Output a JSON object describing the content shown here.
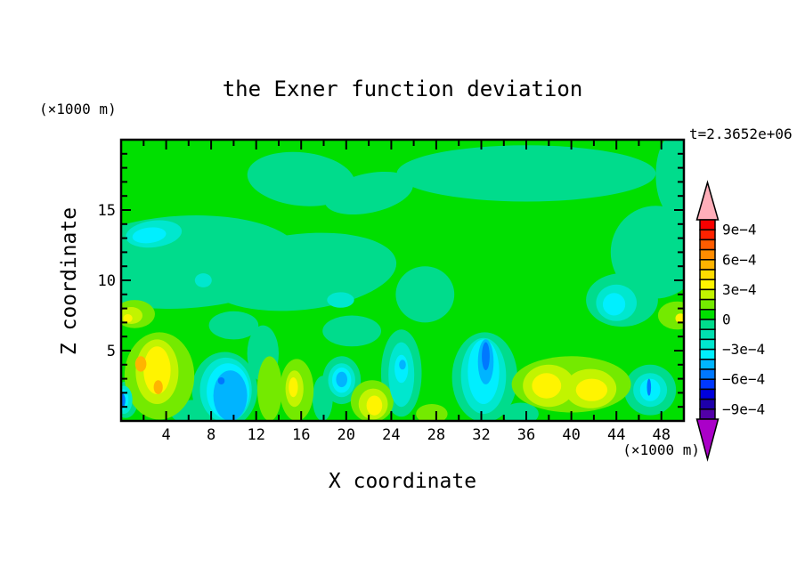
{
  "chart_data": {
    "type": "contour",
    "title": "the Exner function deviation",
    "timestamp": "t=2.3652e+06",
    "x_axis": {
      "label": "X coordinate",
      "unit": "(×1000 m)",
      "range": [
        0,
        50
      ],
      "major_ticks": [
        4,
        8,
        12,
        16,
        20,
        24,
        28,
        32,
        36,
        40,
        44,
        48
      ],
      "minor_ticks": [
        2,
        6,
        10,
        14,
        18,
        22,
        26,
        30,
        34,
        38,
        42,
        46
      ]
    },
    "z_axis": {
      "label": "Z coordinate",
      "unit": "(×1000 m)",
      "range": [
        0,
        20
      ],
      "major_ticks": [
        5,
        10,
        15
      ],
      "minor_ticks": [
        1,
        2,
        3,
        4,
        6,
        7,
        8,
        9,
        11,
        12,
        13,
        14,
        16,
        17,
        18,
        19
      ]
    },
    "colorbar": {
      "over_color": "#FFAEB9",
      "under_color": "#AA00C8",
      "level_colors_top_to_bottom": [
        "#F80000",
        "#FF2200",
        "#FF5C00",
        "#FF8C00",
        "#FFB400",
        "#FFDC00",
        "#FFF400",
        "#C2F400",
        "#74EA00",
        "#00DF00",
        "#00DC8C",
        "#00E0B0",
        "#00E7CE",
        "#00EFFF",
        "#00B4FF",
        "#0078FF",
        "#0038FF",
        "#0000DC",
        "#1E00AA",
        "#5200A8"
      ],
      "labels": [
        [
          "9e−4",
          1
        ],
        [
          "6e−4",
          4
        ],
        [
          "3e−4",
          7
        ],
        [
          "0",
          10
        ],
        [
          "−3e−4",
          13
        ],
        [
          "−6e−4",
          16
        ],
        [
          "−9e−4",
          19
        ]
      ]
    },
    "level_colors": {
      "p0": "#00DF00",
      "p1": "#74EA00",
      "p2": "#C2F400",
      "p3": "#FFF400",
      "p4": "#FFB400",
      "m1": "#00DC8C",
      "m2": "#00E7CE",
      "m3": "#00EFFF",
      "m4": "#00B4FF",
      "m5": "#0078FF"
    },
    "field_regions": [
      [
        "m1",
        5.5,
        11.3,
        10.5,
        3.3,
        -3
      ],
      [
        "m1",
        16.0,
        10.6,
        8.5,
        2.7,
        -6
      ],
      [
        "m1",
        16.0,
        17.2,
        4.8,
        1.9,
        6
      ],
      [
        "m1",
        22.0,
        16.2,
        4.0,
        1.4,
        -12
      ],
      [
        "m1",
        36.0,
        17.6,
        11.5,
        2.0,
        0
      ],
      [
        "m1",
        49.3,
        17.5,
        1.8,
        3.0,
        0
      ],
      [
        "m1",
        47.5,
        12.0,
        4.0,
        3.3,
        0
      ],
      [
        "m1",
        27.0,
        9.0,
        2.6,
        2.0,
        0
      ],
      [
        "m1",
        44.5,
        8.6,
        3.2,
        1.9,
        0
      ],
      [
        "m1",
        10.0,
        6.8,
        2.2,
        1.0,
        0
      ],
      [
        "m1",
        20.5,
        6.4,
        2.6,
        1.1,
        0
      ],
      [
        "m1",
        12.6,
        4.8,
        1.4,
        2.0,
        0
      ],
      [
        "m1",
        17.9,
        1.6,
        0.9,
        1.6,
        0
      ],
      [
        "m1",
        9.2,
        2.2,
        2.9,
        2.7,
        0
      ],
      [
        "m1",
        19.6,
        2.9,
        1.7,
        1.7,
        0
      ],
      [
        "m1",
        24.9,
        3.4,
        1.8,
        3.1,
        0
      ],
      [
        "m1",
        32.3,
        3.1,
        2.9,
        3.2,
        0
      ],
      [
        "m1",
        47.0,
        2.2,
        2.3,
        1.8,
        0
      ],
      [
        "m1",
        6.6,
        0.6,
        2.2,
        0.9,
        0
      ],
      [
        "m1",
        35.5,
        0.5,
        1.6,
        0.8,
        0
      ],
      [
        "m1",
        0.4,
        1.5,
        1.1,
        1.3,
        0
      ],
      [
        "p1",
        3.4,
        3.2,
        3.1,
        3.1,
        0
      ],
      [
        "p1",
        1.2,
        7.6,
        1.8,
        1.0,
        0
      ],
      [
        "p1",
        13.2,
        2.3,
        1.1,
        2.3,
        0
      ],
      [
        "p1",
        15.6,
        2.2,
        1.5,
        2.2,
        0
      ],
      [
        "p1",
        22.3,
        1.4,
        1.9,
        1.5,
        0
      ],
      [
        "p1",
        40.0,
        2.6,
        5.3,
        2.0,
        0
      ],
      [
        "p1",
        49.4,
        7.5,
        1.7,
        1.0,
        0
      ],
      [
        "p1",
        27.6,
        0.5,
        1.4,
        0.7,
        0
      ],
      [
        "p2",
        3.2,
        3.5,
        1.9,
        2.3,
        0
      ],
      [
        "p2",
        0.9,
        7.5,
        1.0,
        0.6,
        0
      ],
      [
        "p2",
        15.4,
        2.3,
        0.8,
        1.3,
        0
      ],
      [
        "p2",
        22.4,
        1.2,
        1.3,
        1.1,
        0
      ],
      [
        "p2",
        38.0,
        2.5,
        2.3,
        1.5,
        0
      ],
      [
        "p2",
        41.7,
        2.3,
        2.3,
        1.4,
        0
      ],
      [
        "p3",
        3.2,
        3.6,
        1.2,
        1.7,
        0
      ],
      [
        "p3",
        0.6,
        7.3,
        0.4,
        0.3,
        0
      ],
      [
        "p3",
        15.3,
        2.4,
        0.4,
        0.7,
        0
      ],
      [
        "p3",
        22.5,
        1.1,
        0.7,
        0.7,
        0
      ],
      [
        "p3",
        37.8,
        2.5,
        1.3,
        0.9,
        0
      ],
      [
        "p3",
        41.8,
        2.2,
        1.4,
        0.8,
        0
      ],
      [
        "p3",
        49.7,
        7.3,
        0.45,
        0.35,
        0
      ],
      [
        "p4",
        1.75,
        4.05,
        0.5,
        0.55,
        0
      ],
      [
        "p4",
        3.3,
        2.4,
        0.4,
        0.5,
        0
      ],
      [
        "m2",
        2.9,
        13.3,
        2.5,
        0.95,
        -7
      ],
      [
        "m3",
        2.5,
        13.2,
        1.5,
        0.55,
        -7
      ],
      [
        "m2",
        7.3,
        10.0,
        0.75,
        0.5,
        0
      ],
      [
        "m2",
        19.5,
        8.6,
        1.2,
        0.55,
        0
      ],
      [
        "m2",
        44.0,
        8.4,
        1.8,
        1.3,
        0
      ],
      [
        "m3",
        43.8,
        8.3,
        1.0,
        0.8,
        0
      ],
      [
        "m2",
        9.3,
        2.2,
        2.3,
        2.3,
        0
      ],
      [
        "m3",
        9.5,
        2.1,
        1.9,
        2.0,
        0
      ],
      [
        "m4",
        9.7,
        1.8,
        1.5,
        1.8,
        0
      ],
      [
        "m5",
        8.9,
        2.85,
        0.3,
        0.25,
        0
      ],
      [
        "m2",
        0.25,
        1.5,
        0.75,
        1.0,
        0
      ],
      [
        "m3",
        0.15,
        1.5,
        0.5,
        0.75,
        0
      ],
      [
        "m5",
        0.1,
        1.45,
        0.28,
        0.5,
        0
      ],
      [
        "m2",
        19.6,
        2.9,
        1.2,
        1.2,
        0
      ],
      [
        "m3",
        19.6,
        2.9,
        0.85,
        0.9,
        0
      ],
      [
        "m4",
        19.6,
        2.95,
        0.5,
        0.55,
        0
      ],
      [
        "m2",
        24.9,
        3.3,
        1.15,
        2.3,
        0
      ],
      [
        "m3",
        24.9,
        3.7,
        0.6,
        1.0,
        0
      ],
      [
        "m4",
        25.0,
        4.0,
        0.3,
        0.35,
        0
      ],
      [
        "m2",
        32.2,
        3.2,
        2.0,
        2.7,
        0
      ],
      [
        "m3",
        32.2,
        3.5,
        1.4,
        2.3,
        0
      ],
      [
        "m4",
        32.4,
        4.2,
        0.7,
        1.6,
        0
      ],
      [
        "m5",
        32.4,
        4.6,
        0.35,
        1.0,
        0
      ],
      [
        "m2",
        47.0,
        2.2,
        1.5,
        1.2,
        0
      ],
      [
        "m3",
        47.0,
        2.2,
        0.9,
        0.8,
        0
      ],
      [
        "m5",
        46.9,
        2.4,
        0.18,
        0.6,
        0
      ]
    ]
  }
}
